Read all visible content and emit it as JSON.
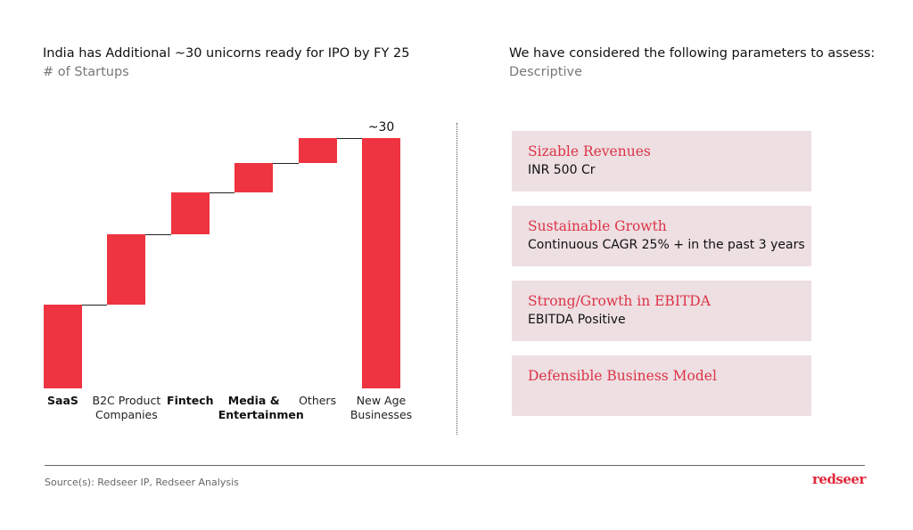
{
  "header": {
    "left_title": "India has Additional ~30 unicorns ready for IPO by FY 25",
    "left_subtitle": "# of Startups",
    "right_title": "We have considered the following parameters to assess:",
    "right_subtitle": "Descriptive"
  },
  "chart_data": {
    "type": "waterfall",
    "categories": [
      "SaaS",
      "B2C Product Companies",
      "Fintech",
      "Media & Entertainmen",
      "Others",
      "New Age Businesses"
    ],
    "values": [
      10,
      8.5,
      5,
      3.5,
      3,
      30
    ],
    "measures": [
      "relative",
      "relative",
      "relative",
      "relative",
      "relative",
      "total"
    ],
    "value_labels": [
      null,
      null,
      null,
      null,
      null,
      "~30"
    ],
    "color": "#ee3440"
  },
  "parameters": [
    {
      "title": "Sizable Revenues",
      "detail": "INR 500 Cr"
    },
    {
      "title": "Sustainable Growth",
      "detail": "Continuous CAGR 25% + in the past 3 years"
    },
    {
      "title": "Strong/Growth in EBITDA",
      "detail": "EBITDA Positive"
    },
    {
      "title": "Defensible Business Model"
    }
  ],
  "footer": {
    "source": "Source(s): Redseer IP, Redseer Analysis",
    "logo": "redseer"
  }
}
